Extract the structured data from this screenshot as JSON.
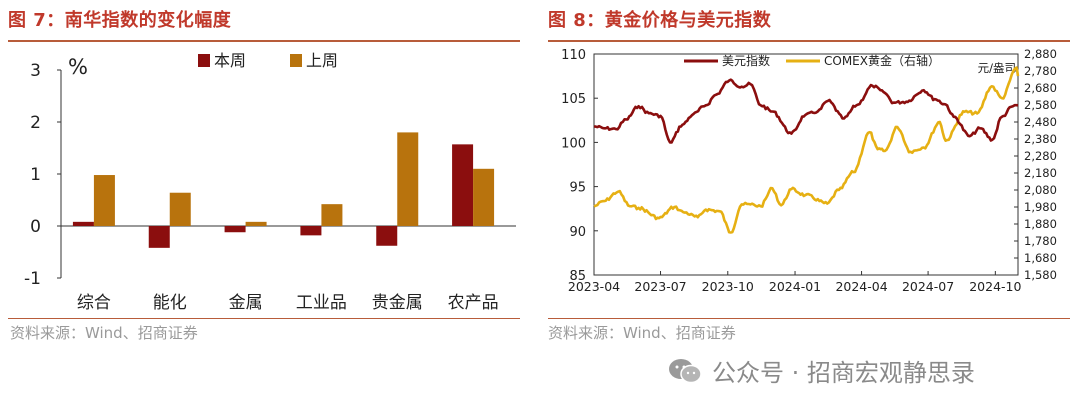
{
  "left_figure": {
    "title": "图 7：南华指数的变化幅度",
    "source": "资料来源：Wind、招商证券"
  },
  "right_figure": {
    "title": "图 8：黄金价格与美元指数",
    "source": "资料来源：Wind、招商证券"
  },
  "watermark": {
    "text": "公众号 · 招商宏观静思录"
  },
  "chart_data": [
    {
      "type": "bar",
      "title": "",
      "unit_label": "%",
      "categories": [
        "综合",
        "能化",
        "金属",
        "工业品",
        "贵金属",
        "农产品"
      ],
      "series": [
        {
          "name": "本周",
          "color": "#8b0e0e",
          "values": [
            0.08,
            -0.42,
            -0.12,
            -0.18,
            -0.38,
            1.57
          ]
        },
        {
          "name": "上周",
          "color": "#b8730d",
          "values": [
            0.98,
            0.64,
            0.08,
            0.42,
            1.8,
            1.1
          ]
        }
      ],
      "ylim": [
        -1,
        3
      ],
      "yticks": [
        "-1",
        "0",
        "1",
        "2",
        "3"
      ],
      "legend": "top-center",
      "grid": false
    },
    {
      "type": "line",
      "title": "",
      "x_ticks": [
        "2023-04",
        "2023-07",
        "2023-10",
        "2024-01",
        "2024-04",
        "2024-07",
        "2024-10"
      ],
      "xlim": [
        "2023-04",
        "2024-11"
      ],
      "y_left": {
        "ticks": [
          "85",
          "90",
          "95",
          "100",
          "105",
          "110"
        ],
        "range": [
          85,
          110
        ]
      },
      "y_right": {
        "ticks": [
          "1,580",
          "1,680",
          "1,780",
          "1,880",
          "1,980",
          "2,080",
          "2,180",
          "2,280",
          "2,380",
          "2,480",
          "2,580",
          "2,680",
          "2,780",
          "2,880"
        ],
        "range": [
          1580,
          2880
        ],
        "unit": "元/盎司"
      },
      "legend": "top-left",
      "grid": false,
      "series": [
        {
          "name": "美元指数",
          "axis": "left",
          "color": "#8b0e0e",
          "points": [
            [
              "2023-04-01",
              101.8
            ],
            [
              "2023-04-15",
              101.6
            ],
            [
              "2023-05-01",
              101.5
            ],
            [
              "2023-05-15",
              102.6
            ],
            [
              "2023-06-01",
              104.1
            ],
            [
              "2023-06-15",
              103.3
            ],
            [
              "2023-07-01",
              103.0
            ],
            [
              "2023-07-14",
              100.0
            ],
            [
              "2023-07-31",
              102.0
            ],
            [
              "2023-08-15",
              103.2
            ],
            [
              "2023-09-01",
              104.2
            ],
            [
              "2023-09-15",
              105.4
            ],
            [
              "2023-10-03",
              107.0
            ],
            [
              "2023-10-20",
              106.3
            ],
            [
              "2023-11-01",
              106.6
            ],
            [
              "2023-11-15",
              104.2
            ],
            [
              "2023-12-01",
              103.5
            ],
            [
              "2023-12-27",
              101.0
            ],
            [
              "2024-01-15",
              103.1
            ],
            [
              "2024-02-01",
              103.5
            ],
            [
              "2024-02-15",
              104.7
            ],
            [
              "2024-03-08",
              102.7
            ],
            [
              "2024-03-25",
              104.2
            ],
            [
              "2024-04-16",
              106.4
            ],
            [
              "2024-05-01",
              105.7
            ],
            [
              "2024-05-15",
              104.5
            ],
            [
              "2024-06-01",
              104.6
            ],
            [
              "2024-06-25",
              105.9
            ],
            [
              "2024-07-10",
              104.9
            ],
            [
              "2024-07-25",
              104.3
            ],
            [
              "2024-08-05",
              102.9
            ],
            [
              "2024-08-27",
              100.7
            ],
            [
              "2024-09-10",
              101.6
            ],
            [
              "2024-09-27",
              100.3
            ],
            [
              "2024-10-10",
              102.9
            ],
            [
              "2024-10-25",
              104.1
            ],
            [
              "2024-11-01",
              104.2
            ]
          ]
        },
        {
          "name": "COMEX黄金（右轴）",
          "axis": "right",
          "color": "#e6b013",
          "points": [
            [
              "2023-04-01",
              1985
            ],
            [
              "2023-04-15",
              2015
            ],
            [
              "2023-05-04",
              2070
            ],
            [
              "2023-05-20",
              1985
            ],
            [
              "2023-06-01",
              1975
            ],
            [
              "2023-06-29",
              1915
            ],
            [
              "2023-07-20",
              1980
            ],
            [
              "2023-08-01",
              1950
            ],
            [
              "2023-08-21",
              1920
            ],
            [
              "2023-09-01",
              1965
            ],
            [
              "2023-09-20",
              1955
            ],
            [
              "2023-10-05",
              1830
            ],
            [
              "2023-10-20",
              1995
            ],
            [
              "2023-11-01",
              1995
            ],
            [
              "2023-11-15",
              1985
            ],
            [
              "2023-12-01",
              2090
            ],
            [
              "2023-12-13",
              1990
            ],
            [
              "2023-12-27",
              2085
            ],
            [
              "2024-01-15",
              2050
            ],
            [
              "2024-02-14",
              2000
            ],
            [
              "2024-03-01",
              2080
            ],
            [
              "2024-03-21",
              2185
            ],
            [
              "2024-04-12",
              2420
            ],
            [
              "2024-04-23",
              2320
            ],
            [
              "2024-05-03",
              2310
            ],
            [
              "2024-05-20",
              2450
            ],
            [
              "2024-06-07",
              2305
            ],
            [
              "2024-06-25",
              2330
            ],
            [
              "2024-07-17",
              2480
            ],
            [
              "2024-07-25",
              2370
            ],
            [
              "2024-08-20",
              2540
            ],
            [
              "2024-09-06",
              2530
            ],
            [
              "2024-09-26",
              2690
            ],
            [
              "2024-10-10",
              2620
            ],
            [
              "2024-10-30",
              2800
            ],
            [
              "2024-11-01",
              2750
            ]
          ]
        }
      ]
    }
  ]
}
